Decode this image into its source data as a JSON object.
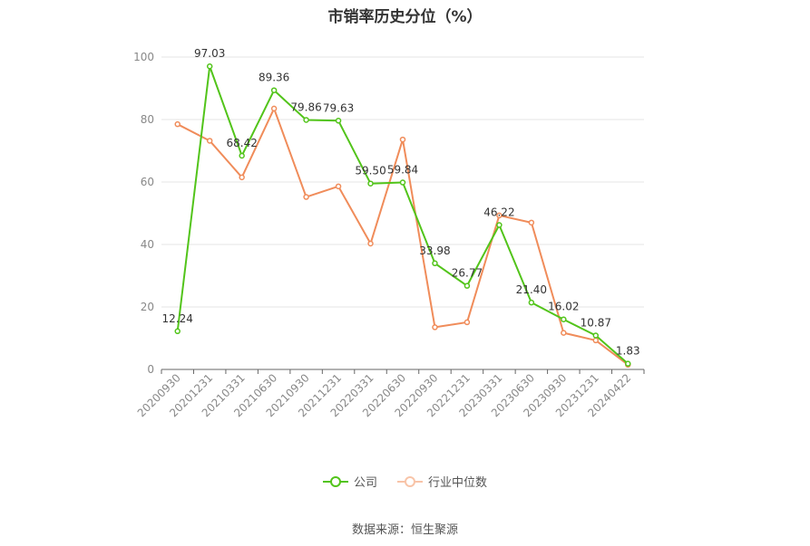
{
  "chart_data": {
    "type": "line",
    "title": "市销率历史分位（%）",
    "categories": [
      "20200930",
      "20201231",
      "20210331",
      "20210630",
      "20210930",
      "20211231",
      "20220331",
      "20220630",
      "20220930",
      "20221231",
      "20230331",
      "20230630",
      "20230930",
      "20231231",
      "20240422"
    ],
    "series": [
      {
        "name": "公司",
        "color": "#52c41a",
        "values": [
          12.24,
          97.03,
          68.42,
          89.36,
          79.86,
          79.63,
          59.5,
          59.84,
          33.98,
          26.77,
          46.22,
          21.4,
          16.02,
          10.87,
          1.83
        ],
        "labels": [
          "12.24",
          "97.03",
          "68.42",
          "89.36",
          "79.86",
          "79.63",
          "59.50",
          "59.84",
          "33.98",
          "26.77",
          "46.22",
          "21.40",
          "16.02",
          "10.87",
          "1.83"
        ]
      },
      {
        "name": "行业中位数",
        "color": "#f08c5a",
        "values": [
          78.5,
          73.2,
          61.5,
          83.5,
          55.2,
          58.6,
          40.3,
          73.6,
          13.5,
          15.1,
          49.3,
          47.0,
          11.7,
          9.3,
          1.5
        ]
      }
    ],
    "ylim": [
      0,
      100
    ],
    "yticks": [
      0,
      20,
      40,
      60,
      80,
      100
    ],
    "grid": true,
    "legend": "bottom-center",
    "source": "数据来源：恒生聚源"
  }
}
